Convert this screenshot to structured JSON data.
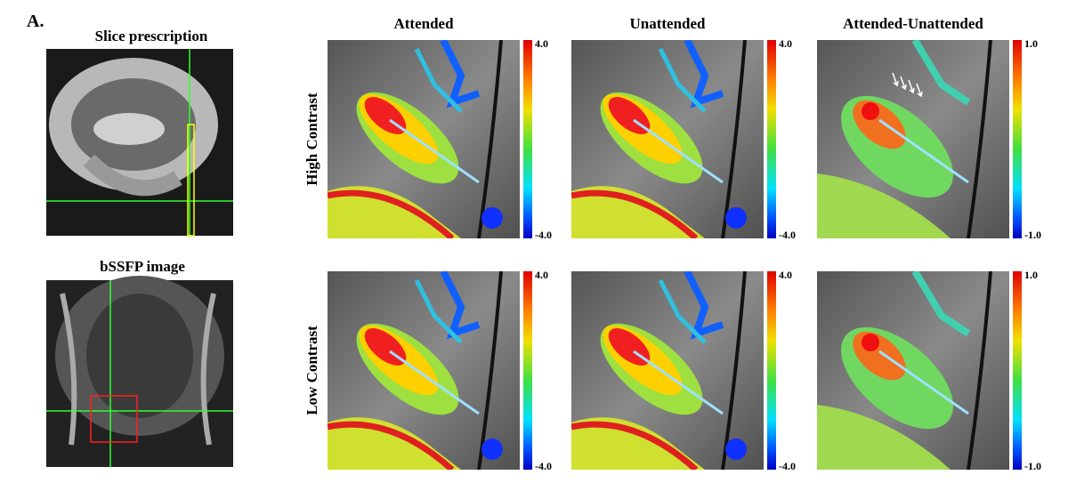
{
  "figure_label": "A.",
  "left": {
    "top_title": "Slice prescription",
    "bottom_title": "bSSFP image"
  },
  "columns": [
    "Attended",
    "Unattended",
    "Attended-Unattended"
  ],
  "rows": [
    {
      "label": "High Contrast",
      "colorbars": [
        {
          "max": "4.0",
          "min": "-4.0"
        },
        {
          "max": "4.0",
          "min": "-4.0"
        },
        {
          "max": "1.0",
          "min": "-1.0"
        }
      ]
    },
    {
      "label": "Low Contrast",
      "colorbars": [
        {
          "max": "4.0",
          "min": "-4.0"
        },
        {
          "max": "4.0",
          "min": "-4.0"
        },
        {
          "max": "1.0",
          "min": "-1.0"
        }
      ]
    }
  ]
}
